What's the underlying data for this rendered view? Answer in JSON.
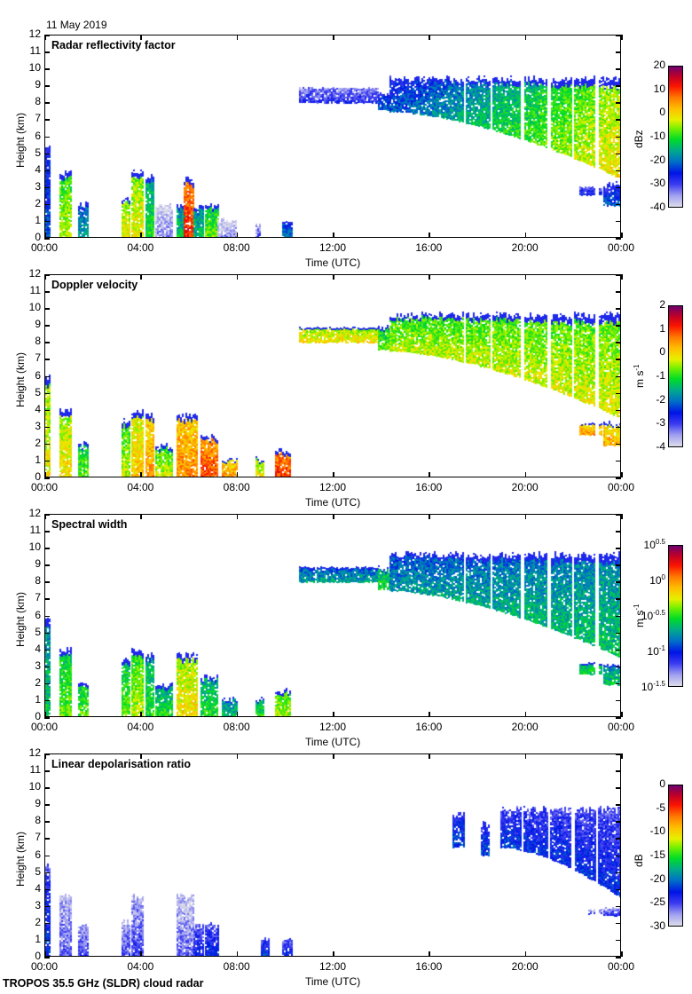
{
  "header": {
    "date": "11 May 2019"
  },
  "footer": {
    "instrument": "TROPOS 35.5 GHz (SLDR) cloud radar"
  },
  "chart_data": [
    {
      "type": "heatmap",
      "title": "Radar reflectivity factor",
      "xlabel": "Time (UTC)",
      "ylabel": "Height (km)",
      "xlim_hours": [
        0,
        24
      ],
      "ylim": [
        0,
        12
      ],
      "x_tick_labels": [
        "00:00",
        "04:00",
        "08:00",
        "12:00",
        "16:00",
        "20:00",
        "00:00"
      ],
      "y_tick_labels": [
        "0",
        "1",
        "2",
        "3",
        "4",
        "5",
        "6",
        "7",
        "8",
        "9",
        "10",
        "11",
        "12"
      ],
      "colorbar": {
        "label": "dBz",
        "range": [
          -40,
          20
        ],
        "ticks": [
          "20",
          "10",
          "0",
          "-10",
          "-20",
          "-30",
          "-40"
        ]
      },
      "palette": "reflectivity",
      "features": [
        {
          "t0": 0.0,
          "t1": 0.15,
          "base": 0.0,
          "top": 5.6,
          "value": 0.25
        },
        {
          "t0": 0.6,
          "t1": 1.1,
          "base": 0.0,
          "top": 4.0,
          "value": 0.55
        },
        {
          "t0": 1.4,
          "t1": 1.8,
          "base": 0.0,
          "top": 2.1,
          "value": 0.35
        },
        {
          "t0": 3.2,
          "t1": 3.5,
          "base": 0.0,
          "top": 2.4,
          "value": 0.6
        },
        {
          "t0": 3.6,
          "t1": 4.1,
          "base": 0.0,
          "top": 4.1,
          "value": 0.6
        },
        {
          "t0": 4.2,
          "t1": 4.5,
          "base": 0.0,
          "top": 3.8,
          "value": 0.45
        },
        {
          "t0": 4.6,
          "t1": 5.3,
          "base": 0.0,
          "top": 2.0,
          "value": 0.05
        },
        {
          "t0": 5.5,
          "t1": 5.8,
          "base": 0.0,
          "top": 2.0,
          "value": 0.4
        },
        {
          "t0": 5.8,
          "t1": 6.2,
          "base": 0.0,
          "top": 3.6,
          "value": 0.8
        },
        {
          "t0": 6.2,
          "t1": 6.6,
          "base": 0.0,
          "top": 1.9,
          "value": 0.4
        },
        {
          "t0": 6.7,
          "t1": 7.2,
          "base": 0.0,
          "top": 2.0,
          "value": 0.5
        },
        {
          "t0": 7.2,
          "t1": 8.0,
          "base": 0.0,
          "top": 1.2,
          "value": 0.05
        },
        {
          "t0": 8.8,
          "t1": 9.0,
          "base": 0.0,
          "top": 0.8,
          "value": 0.1
        },
        {
          "t0": 9.9,
          "t1": 10.3,
          "base": 0.0,
          "top": 0.9,
          "value": 0.3
        },
        {
          "t0": 10.6,
          "t1": 13.9,
          "base": 8.0,
          "top": 8.9,
          "value": 0.15
        },
        {
          "t0": 13.9,
          "t1": 14.4,
          "base": 7.6,
          "top": 8.6,
          "value": 0.28
        },
        {
          "t0": 14.4,
          "t1": 24.0,
          "base_start": 7.5,
          "base_end": 3.5,
          "top": 9.6,
          "value_start": 0.25,
          "value_end": 0.62
        },
        {
          "t0": 22.3,
          "t1": 23.2,
          "base": 2.5,
          "top": 3.0,
          "value": 0.2
        },
        {
          "t0": 23.3,
          "t1": 24.0,
          "base": 1.9,
          "top": 3.3,
          "value": 0.25
        }
      ]
    },
    {
      "type": "heatmap",
      "title": "Doppler velocity",
      "xlabel": "Time (UTC)",
      "ylabel": "Height (km)",
      "xlim_hours": [
        0,
        24
      ],
      "ylim": [
        0,
        12
      ],
      "x_tick_labels": [
        "00:00",
        "04:00",
        "08:00",
        "12:00",
        "16:00",
        "20:00",
        "00:00"
      ],
      "y_tick_labels": [
        "0",
        "1",
        "2",
        "3",
        "4",
        "5",
        "6",
        "7",
        "8",
        "9",
        "10",
        "11",
        "12"
      ],
      "colorbar": {
        "label": "m s-1",
        "range": [
          -4,
          2
        ],
        "ticks": [
          "2",
          "1",
          "0",
          "-1",
          "-2",
          "-3",
          "-4"
        ]
      },
      "palette": "velocity",
      "features": [
        {
          "t0": 0.0,
          "t1": 0.15,
          "base": 0.0,
          "top": 6.1,
          "value": 0.6
        },
        {
          "t0": 0.6,
          "t1": 1.1,
          "base": 0.0,
          "top": 4.1,
          "value": 0.62
        },
        {
          "t0": 1.4,
          "t1": 1.8,
          "base": 0.0,
          "top": 2.1,
          "value": 0.5
        },
        {
          "t0": 3.2,
          "t1": 3.5,
          "base": 0.0,
          "top": 3.5,
          "value": 0.55
        },
        {
          "t0": 3.6,
          "t1": 4.1,
          "base": 0.0,
          "top": 4.1,
          "value": 0.65
        },
        {
          "t0": 4.2,
          "t1": 4.5,
          "base": 0.0,
          "top": 3.8,
          "value": 0.7
        },
        {
          "t0": 4.6,
          "t1": 5.3,
          "base": 0.0,
          "top": 2.0,
          "value": 0.55
        },
        {
          "t0": 5.5,
          "t1": 6.3,
          "base": 0.0,
          "top": 3.8,
          "value": 0.72
        },
        {
          "t0": 6.5,
          "t1": 7.2,
          "base": 0.0,
          "top": 2.5,
          "value": 0.78
        },
        {
          "t0": 7.4,
          "t1": 8.0,
          "base": 0.0,
          "top": 1.2,
          "value": 0.7
        },
        {
          "t0": 8.8,
          "t1": 9.1,
          "base": 0.0,
          "top": 1.2,
          "value": 0.6
        },
        {
          "t0": 9.6,
          "t1": 10.2,
          "base": 0.0,
          "top": 1.7,
          "value": 0.8
        },
        {
          "t0": 10.6,
          "t1": 13.9,
          "base": 8.0,
          "top": 8.9,
          "value": 0.62
        },
        {
          "t0": 13.9,
          "t1": 14.4,
          "base": 7.6,
          "top": 9.0,
          "value": 0.5
        },
        {
          "t0": 14.4,
          "t1": 24.0,
          "base_start": 7.5,
          "base_end": 3.5,
          "top": 9.8,
          "value_start": 0.55,
          "value_end": 0.58
        },
        {
          "t0": 22.3,
          "t1": 23.2,
          "base": 2.5,
          "top": 3.2,
          "value": 0.7
        },
        {
          "t0": 23.3,
          "t1": 24.0,
          "base": 1.9,
          "top": 3.3,
          "value": 0.68
        }
      ]
    },
    {
      "type": "heatmap",
      "title": "Spectral width",
      "xlabel": "Time (UTC)",
      "ylabel": "Height (km)",
      "xlim_hours": [
        0,
        24
      ],
      "ylim": [
        0,
        12
      ],
      "x_tick_labels": [
        "00:00",
        "04:00",
        "08:00",
        "12:00",
        "16:00",
        "20:00",
        "00:00"
      ],
      "y_tick_labels": [
        "0",
        "1",
        "2",
        "3",
        "4",
        "5",
        "6",
        "7",
        "8",
        "9",
        "10",
        "11",
        "12"
      ],
      "colorbar": {
        "label": "m s-1",
        "range": [
          -1.5,
          0.5
        ],
        "scale": "log10",
        "ticks": [
          "10^0.5",
          "10^0",
          "10^-0.5",
          "10^-1",
          "10^-1.5"
        ]
      },
      "palette": "width",
      "features": [
        {
          "t0": 0.0,
          "t1": 0.15,
          "base": 0.0,
          "top": 6.1,
          "value": 0.4
        },
        {
          "t0": 0.6,
          "t1": 1.1,
          "base": 0.0,
          "top": 4.1,
          "value": 0.5
        },
        {
          "t0": 1.4,
          "t1": 1.8,
          "base": 0.0,
          "top": 2.1,
          "value": 0.5
        },
        {
          "t0": 3.2,
          "t1": 3.5,
          "base": 0.0,
          "top": 3.5,
          "value": 0.5
        },
        {
          "t0": 3.6,
          "t1": 4.1,
          "base": 0.0,
          "top": 4.1,
          "value": 0.55
        },
        {
          "t0": 4.2,
          "t1": 4.5,
          "base": 0.0,
          "top": 3.8,
          "value": 0.45
        },
        {
          "t0": 4.6,
          "t1": 5.3,
          "base": 0.0,
          "top": 2.0,
          "value": 0.45
        },
        {
          "t0": 5.5,
          "t1": 6.3,
          "base": 0.0,
          "top": 3.8,
          "value": 0.62
        },
        {
          "t0": 6.5,
          "t1": 7.2,
          "base": 0.0,
          "top": 2.5,
          "value": 0.45
        },
        {
          "t0": 7.4,
          "t1": 8.0,
          "base": 0.0,
          "top": 1.2,
          "value": 0.4
        },
        {
          "t0": 8.8,
          "t1": 9.1,
          "base": 0.0,
          "top": 1.2,
          "value": 0.45
        },
        {
          "t0": 9.6,
          "t1": 10.2,
          "base": 0.0,
          "top": 1.7,
          "value": 0.55
        },
        {
          "t0": 10.6,
          "t1": 13.9,
          "base": 8.0,
          "top": 8.9,
          "value": 0.35
        },
        {
          "t0": 13.9,
          "t1": 14.4,
          "base": 7.6,
          "top": 9.0,
          "value": 0.45
        },
        {
          "t0": 14.4,
          "t1": 24.0,
          "base_start": 7.5,
          "base_end": 3.5,
          "top": 9.8,
          "value_start": 0.33,
          "value_end": 0.4
        },
        {
          "t0": 22.3,
          "t1": 23.2,
          "base": 2.5,
          "top": 3.2,
          "value": 0.45
        },
        {
          "t0": 23.3,
          "t1": 24.0,
          "base": 1.9,
          "top": 3.3,
          "value": 0.4
        }
      ]
    },
    {
      "type": "heatmap",
      "title": "Linear depolarisation ratio",
      "xlabel": "Time (UTC)",
      "ylabel": "Height (km)",
      "xlim_hours": [
        0,
        24
      ],
      "ylim": [
        0,
        12
      ],
      "x_tick_labels": [
        "00:00",
        "04:00",
        "08:00",
        "12:00",
        "16:00",
        "20:00",
        "00:00"
      ],
      "y_tick_labels": [
        "0",
        "1",
        "2",
        "3",
        "4",
        "5",
        "6",
        "7",
        "8",
        "9",
        "10",
        "11",
        "12"
      ],
      "colorbar": {
        "label": "dB",
        "range": [
          -30,
          0
        ],
        "ticks": [
          "0",
          "-5",
          "-10",
          "-15",
          "-20",
          "-25",
          "-30"
        ]
      },
      "palette": "ldr",
      "features": [
        {
          "t0": 0.0,
          "t1": 0.15,
          "base": 0.0,
          "top": 5.6,
          "value": 0.22
        },
        {
          "t0": 0.6,
          "t1": 1.1,
          "base": 0.0,
          "top": 3.8,
          "value": 0.1
        },
        {
          "t0": 1.4,
          "t1": 1.8,
          "base": 0.0,
          "top": 2.0,
          "value": 0.12
        },
        {
          "t0": 3.2,
          "t1": 3.5,
          "base": 0.0,
          "top": 2.2,
          "value": 0.12
        },
        {
          "t0": 3.6,
          "t1": 4.1,
          "base": 0.0,
          "top": 3.7,
          "value": 0.12
        },
        {
          "t0": 5.5,
          "t1": 6.2,
          "base": 0.0,
          "top": 3.8,
          "value": 0.08
        },
        {
          "t0": 6.2,
          "t1": 6.6,
          "base": 0.0,
          "top": 1.9,
          "value": 0.18
        },
        {
          "t0": 6.7,
          "t1": 7.2,
          "base": 0.0,
          "top": 2.0,
          "value": 0.2
        },
        {
          "t0": 9.0,
          "t1": 9.3,
          "base": 0.0,
          "top": 1.2,
          "value": 0.22
        },
        {
          "t0": 9.9,
          "t1": 10.3,
          "base": 0.0,
          "top": 1.2,
          "value": 0.2
        },
        {
          "t0": 17.0,
          "t1": 17.5,
          "base": 6.5,
          "top": 8.6,
          "value": 0.25
        },
        {
          "t0": 18.2,
          "t1": 18.6,
          "base": 6.0,
          "top": 8.0,
          "value": 0.24
        },
        {
          "t0": 19.0,
          "t1": 24.0,
          "base_start": 6.5,
          "base_end": 3.5,
          "top": 8.9,
          "value_start": 0.22,
          "value_end": 0.2
        },
        {
          "t0": 22.7,
          "t1": 23.2,
          "base": 2.5,
          "top": 2.8,
          "value": 0.12
        },
        {
          "t0": 23.3,
          "t1": 24.0,
          "base": 2.4,
          "top": 2.9,
          "value": 0.15
        }
      ]
    }
  ]
}
